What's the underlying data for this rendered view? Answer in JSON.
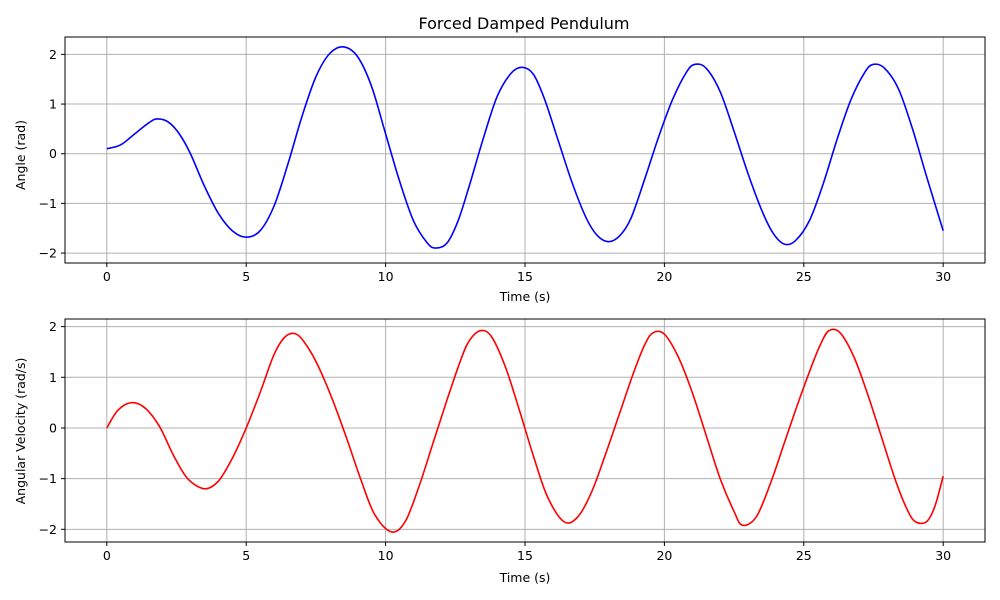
{
  "chart_data": [
    {
      "type": "line",
      "title": "Forced Damped Pendulum",
      "xlabel": "Time (s)",
      "ylabel": "Angle (rad)",
      "xlim": [
        -1.5,
        31.5
      ],
      "ylim": [
        -2.2,
        2.35
      ],
      "xticks": [
        0,
        5,
        10,
        15,
        20,
        25,
        30
      ],
      "xtick_labels": [
        "0",
        "5",
        "10",
        "15",
        "20",
        "25",
        "30"
      ],
      "yticks": [
        -2,
        -1,
        0,
        1,
        2
      ],
      "ytick_labels": [
        "−2",
        "−1",
        "0",
        "1",
        "2"
      ],
      "grid": true,
      "color": "#0000ff",
      "series": [
        {
          "x": [
            0,
            0.5,
            1.0,
            1.5,
            1.8,
            2.2,
            2.6,
            3.0,
            3.5,
            4.0,
            4.5,
            5.0,
            5.5,
            6.0,
            6.5,
            7.0,
            7.5,
            8.0,
            8.5,
            9.0,
            9.5,
            10.0,
            10.5,
            11.0,
            11.5,
            11.8,
            12.2,
            12.6,
            13.0,
            13.5,
            14.0,
            14.5,
            14.9,
            15.3,
            15.7,
            16.2,
            16.7,
            17.2,
            17.6,
            18.0,
            18.4,
            18.8,
            19.3,
            19.8,
            20.3,
            20.8,
            21.1,
            21.5,
            22.0,
            22.5,
            23.0,
            23.5,
            23.9,
            24.3,
            24.7,
            25.2,
            25.7,
            26.2,
            26.7,
            27.2,
            27.5,
            27.9,
            28.4,
            28.9,
            29.4,
            30.0
          ],
          "y": [
            0.1,
            0.18,
            0.4,
            0.62,
            0.7,
            0.64,
            0.4,
            0.0,
            -0.65,
            -1.2,
            -1.55,
            -1.68,
            -1.55,
            -1.05,
            -0.2,
            0.75,
            1.55,
            2.02,
            2.15,
            1.95,
            1.35,
            0.4,
            -0.55,
            -1.35,
            -1.8,
            -1.9,
            -1.8,
            -1.35,
            -0.65,
            0.3,
            1.15,
            1.62,
            1.74,
            1.6,
            1.1,
            0.25,
            -0.6,
            -1.3,
            -1.65,
            -1.77,
            -1.65,
            -1.3,
            -0.5,
            0.35,
            1.1,
            1.65,
            1.8,
            1.72,
            1.25,
            0.45,
            -0.4,
            -1.15,
            -1.6,
            -1.82,
            -1.75,
            -1.35,
            -0.6,
            0.3,
            1.1,
            1.65,
            1.8,
            1.72,
            1.3,
            0.5,
            -0.45,
            -1.55
          ]
        }
      ]
    },
    {
      "type": "line",
      "xlabel": "Time (s)",
      "ylabel": "Angular Velocity (rad/s)",
      "xlim": [
        -1.5,
        31.5
      ],
      "ylim": [
        -2.25,
        2.15
      ],
      "xticks": [
        0,
        5,
        10,
        15,
        20,
        25,
        30
      ],
      "xtick_labels": [
        "0",
        "5",
        "10",
        "15",
        "20",
        "25",
        "30"
      ],
      "yticks": [
        -2,
        -1,
        0,
        1,
        2
      ],
      "ytick_labels": [
        "−2",
        "−1",
        "0",
        "1",
        "2"
      ],
      "grid": true,
      "color": "#ff0000",
      "series": [
        {
          "x": [
            0,
            0.4,
            0.9,
            1.4,
            1.9,
            2.4,
            2.9,
            3.5,
            4.0,
            4.5,
            5.0,
            5.5,
            6.0,
            6.4,
            6.8,
            7.2,
            7.6,
            8.1,
            8.6,
            9.1,
            9.6,
            10.2,
            10.7,
            11.2,
            11.7,
            12.2,
            12.7,
            13.0,
            13.4,
            13.8,
            14.3,
            14.8,
            15.3,
            15.8,
            16.4,
            16.9,
            17.4,
            17.9,
            18.4,
            18.9,
            19.3,
            19.6,
            20.0,
            20.5,
            21.0,
            21.5,
            22.0,
            22.5,
            22.8,
            23.3,
            23.8,
            24.3,
            24.8,
            25.3,
            25.6,
            25.9,
            26.3,
            26.8,
            27.3,
            27.8,
            28.3,
            28.7,
            29.0,
            29.4,
            29.7,
            30.0
          ],
          "y": [
            0.0,
            0.35,
            0.5,
            0.38,
            0.02,
            -0.55,
            -1.0,
            -1.2,
            -1.05,
            -0.6,
            0.0,
            0.7,
            1.45,
            1.8,
            1.85,
            1.6,
            1.2,
            0.55,
            -0.2,
            -1.0,
            -1.7,
            -2.05,
            -1.85,
            -1.15,
            -0.3,
            0.55,
            1.35,
            1.72,
            1.92,
            1.8,
            1.2,
            0.35,
            -0.55,
            -1.35,
            -1.85,
            -1.75,
            -1.25,
            -0.5,
            0.3,
            1.1,
            1.65,
            1.88,
            1.85,
            1.4,
            0.7,
            -0.15,
            -1.0,
            -1.65,
            -1.92,
            -1.75,
            -1.1,
            -0.3,
            0.5,
            1.25,
            1.65,
            1.92,
            1.88,
            1.4,
            0.65,
            -0.2,
            -1.05,
            -1.6,
            -1.85,
            -1.85,
            -1.55,
            -0.95
          ]
        }
      ]
    }
  ]
}
